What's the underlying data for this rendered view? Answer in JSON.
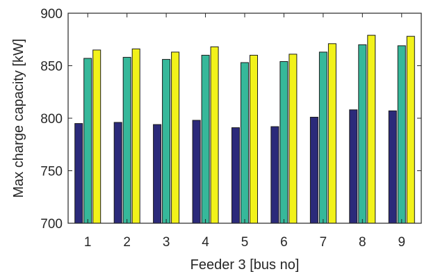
{
  "chart_data": {
    "type": "bar",
    "title": "",
    "xlabel": "Feeder 3 [bus no]",
    "ylabel": "Max charge capacity [kW]",
    "categories": [
      "1",
      "2",
      "3",
      "4",
      "5",
      "6",
      "7",
      "8",
      "9"
    ],
    "ylim": [
      700,
      900
    ],
    "yticks": [
      700,
      750,
      800,
      850,
      900
    ],
    "grid": false,
    "series": [
      {
        "color": "#2b2a7a",
        "values": [
          795,
          796,
          794,
          798,
          791,
          792,
          801,
          808,
          807
        ]
      },
      {
        "color": "#36b89a",
        "values": [
          857,
          858,
          856,
          860,
          853,
          854,
          863,
          870,
          869
        ]
      },
      {
        "color": "#f2f21a",
        "values": [
          865,
          866,
          863,
          868,
          860,
          861,
          871,
          879,
          878
        ]
      }
    ]
  }
}
